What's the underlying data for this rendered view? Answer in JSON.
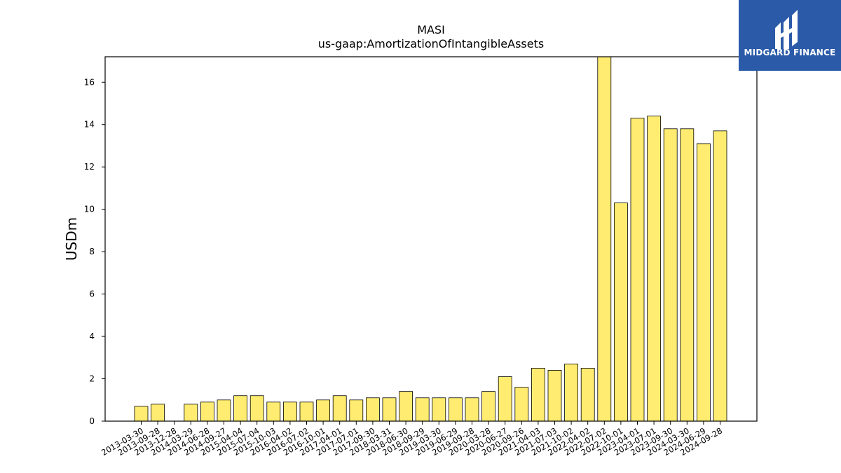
{
  "logo": {
    "text": "MIDGARD FINANCE",
    "background": "#2b5aa8"
  },
  "chart_data": {
    "type": "bar",
    "title": "MASI",
    "subtitle": "us-gaap:AmortizationOfIntangibleAssets",
    "xlabel": "",
    "ylabel": "USDm",
    "ylim": [
      0,
      17.2
    ],
    "yticks": [
      0,
      2,
      4,
      6,
      8,
      10,
      12,
      14,
      16
    ],
    "grid": false,
    "bar_color": "#ffec70",
    "bar_edge": "#000000",
    "categories": [
      "2013-03-30",
      "2013-09-28",
      "2013-12-28",
      "2014-03-29",
      "2014-06-28",
      "2014-09-27",
      "2015-04-04",
      "2015-07-04",
      "2015-10-03",
      "2016-04-02",
      "2016-07-02",
      "2016-10-01",
      "2017-04-01",
      "2017-07-01",
      "2017-09-30",
      "2018-03-31",
      "2018-06-30",
      "2018-09-29",
      "2019-03-30",
      "2019-06-29",
      "2019-09-28",
      "2020-03-28",
      "2020-06-27",
      "2020-09-26",
      "2021-04-03",
      "2021-07-03",
      "2021-10-02",
      "2022-04-02",
      "2022-07-02",
      "2022-10-01",
      "2023-04-01",
      "2023-07-01",
      "2023-09-30",
      "2024-03-30",
      "2024-06-29",
      "2024-09-28"
    ],
    "values": [
      0.7,
      0.8,
      0,
      0.8,
      0.9,
      1.0,
      1.2,
      1.2,
      0.9,
      0.9,
      0.9,
      1.0,
      1.2,
      1.0,
      1.1,
      1.1,
      1.4,
      1.1,
      1.1,
      1.1,
      1.1,
      1.4,
      2.1,
      1.6,
      2.5,
      2.4,
      2.7,
      2.5,
      17.2,
      10.3,
      14.3,
      14.4,
      13.8,
      13.8,
      13.1,
      13.7
    ]
  }
}
